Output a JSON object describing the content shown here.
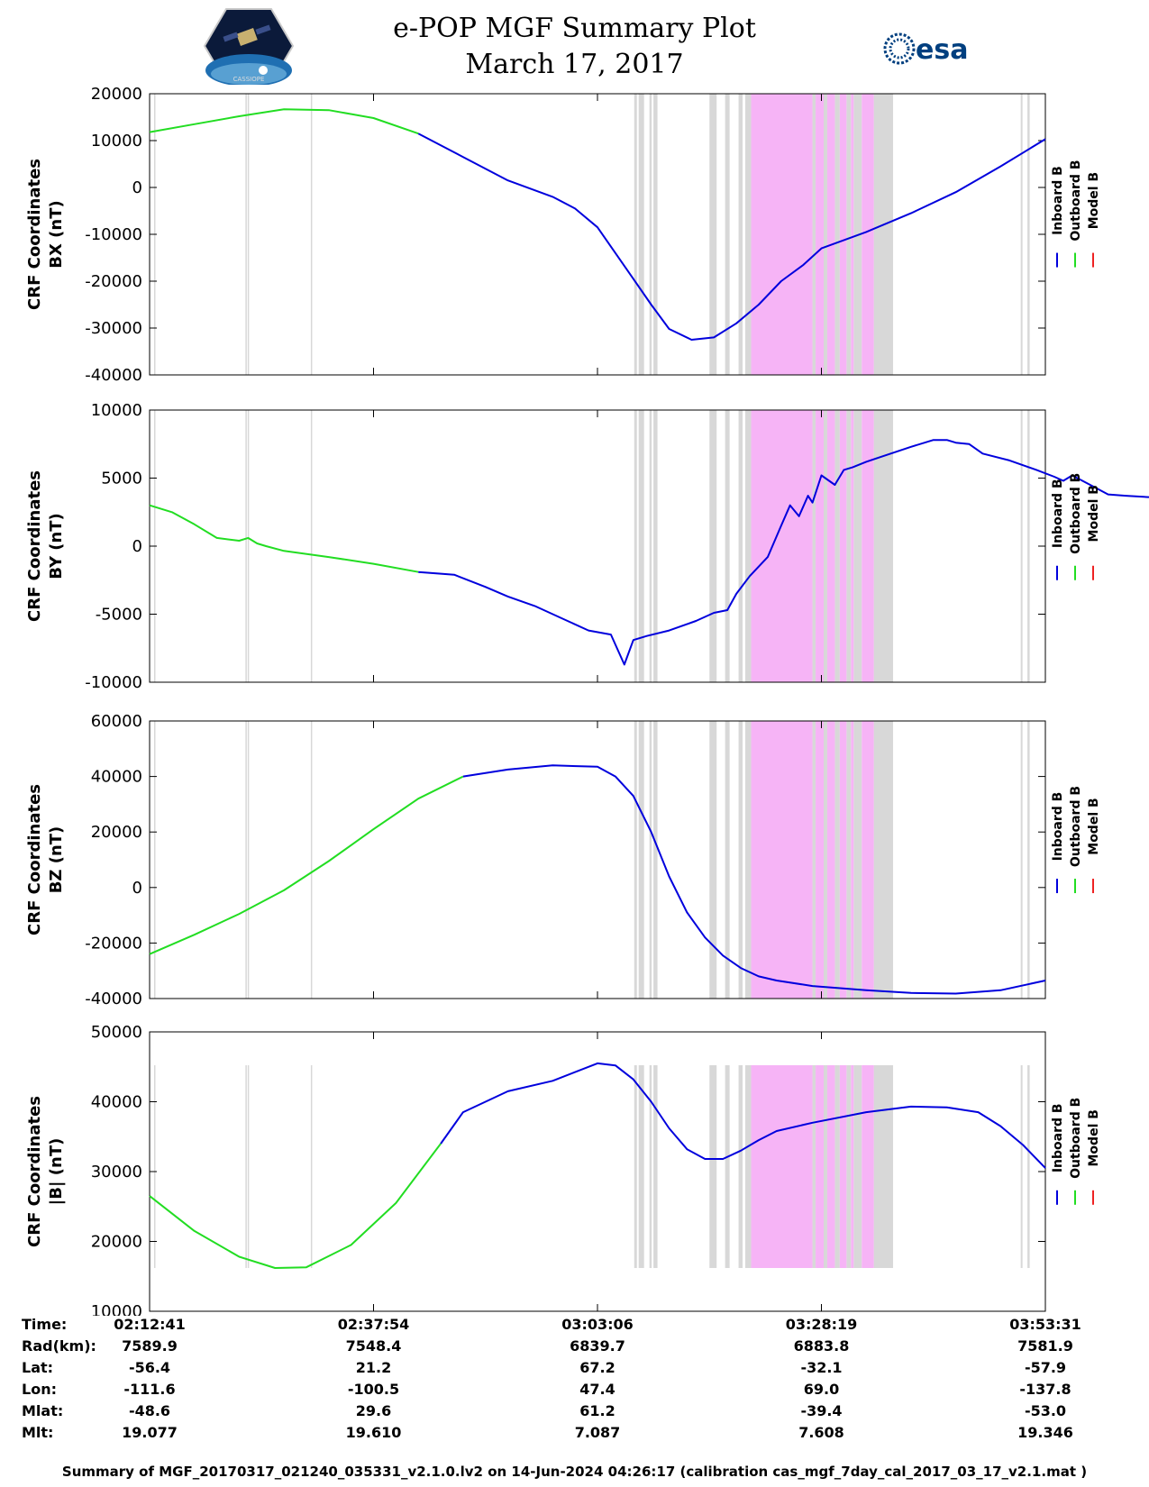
{
  "header": {
    "title": "e-POP MGF Summary Plot",
    "date": "March 17, 2017",
    "left_logo": "cassiope-hexagon-logo",
    "left_logo_text": "CASSIOPE",
    "right_logo": "esa-logo",
    "right_logo_text": "esa"
  },
  "colors": {
    "inboard": "#0000dd",
    "outboard": "#22dd22",
    "model": "#ee2222",
    "gray_band": "#d8d8d8",
    "pink_band": "#f6b4f6"
  },
  "legend": {
    "labels": [
      "Inboard B",
      "Outboard B",
      "Model B"
    ]
  },
  "chart_data": [
    {
      "type": "line",
      "ylabel": "CRF Coordinates\nBX (nT)",
      "ylabel_lines": [
        "CRF Coordinates",
        "BX (nT)"
      ],
      "ylim": [
        -40000,
        20000
      ],
      "yticks": [
        -40000,
        -30000,
        -20000,
        -10000,
        0,
        10000,
        20000
      ],
      "ytick_labels": [
        "-40000",
        "-30000",
        "-20000",
        "-10000",
        "0",
        "10000",
        "20000"
      ],
      "xlim": [
        "02:12:41",
        "03:53:31"
      ],
      "series": [
        {
          "name": "Outboard B",
          "color": "#22dd22",
          "x": [
            0,
            10,
            20,
            30,
            40,
            50,
            60
          ],
          "y": [
            11800,
            13500,
            15200,
            16700,
            16500,
            14800,
            11500
          ]
        },
        {
          "name": "Inboard B",
          "color": "#0000dd",
          "x": [
            60,
            70,
            80,
            90,
            95,
            100,
            104,
            108,
            112,
            116,
            121,
            126,
            131,
            136,
            141,
            146,
            150,
            160,
            170,
            180,
            190,
            200
          ],
          "y": [
            11500,
            6500,
            1500,
            -2000,
            -4500,
            -8500,
            -14000,
            -19500,
            -25000,
            -30200,
            -32500,
            -32000,
            -29000,
            -25000,
            -20000,
            -16500,
            -13000,
            -9500,
            -5500,
            -1000,
            4500,
            10300
          ]
        },
        {
          "name": "Model B",
          "color": "#ee2222",
          "x": [],
          "y": []
        }
      ]
    },
    {
      "type": "line",
      "ylabel": "CRF Coordinates\nBY (nT)",
      "ylabel_lines": [
        "CRF Coordinates",
        "BY (nT)"
      ],
      "ylim": [
        -10000,
        10000
      ],
      "yticks": [
        -10000,
        -5000,
        0,
        5000,
        10000
      ],
      "ytick_labels": [
        "-10000",
        "-5000",
        "0",
        "5000",
        "10000"
      ],
      "xlim": [
        "02:12:41",
        "03:53:31"
      ],
      "series": [
        {
          "name": "Outboard B",
          "color": "#22dd22",
          "x": [
            0,
            5,
            10,
            15,
            20,
            22,
            24,
            26,
            30,
            40,
            50,
            60
          ],
          "y": [
            3000,
            2500,
            1600,
            600,
            400,
            600,
            200,
            0,
            -350,
            -800,
            -1300,
            -1900
          ]
        },
        {
          "name": "Inboard B",
          "color": "#0000dd",
          "x": [
            60,
            68,
            75,
            80,
            86,
            92,
            98,
            103,
            106,
            108,
            111,
            116,
            122,
            126,
            129,
            131,
            134,
            138,
            141,
            143,
            145,
            147,
            148,
            150,
            153,
            155,
            157,
            160,
            170,
            175,
            178,
            180,
            183,
            186,
            192,
            198,
            202,
            204,
            206,
            210,
            214,
            218,
            223,
            231,
            232,
            234,
            238
          ],
          "y": [
            -1900,
            -2100,
            -3000,
            -3700,
            -4400,
            -5300,
            -6200,
            -6500,
            -8700,
            -6900,
            -6600,
            -6200,
            -5500,
            -4900,
            -4700,
            -3500,
            -2200,
            -800,
            1500,
            3000,
            2200,
            3700,
            3200,
            5200,
            4500,
            5600,
            5800,
            6200,
            7300,
            7800,
            7800,
            7600,
            7500,
            6800,
            6300,
            5600,
            5100,
            4800,
            5200,
            4500,
            3800,
            3700,
            3600,
            3800,
            4000,
            4100,
            3800
          ]
        },
        {
          "name": "Model B",
          "color": "#ee2222",
          "x": [],
          "y": []
        }
      ]
    },
    {
      "type": "line",
      "ylabel": "CRF Coordinates\nBZ (nT)",
      "ylabel_lines": [
        "CRF Coordinates",
        "BZ (nT)"
      ],
      "ylim": [
        -40000,
        60000
      ],
      "yticks": [
        -40000,
        -20000,
        0,
        20000,
        40000,
        60000
      ],
      "ytick_labels": [
        "-40000",
        "-20000",
        "0",
        "20000",
        "40000",
        "60000"
      ],
      "xlim": [
        "02:12:41",
        "03:53:31"
      ],
      "series": [
        {
          "name": "Outboard B",
          "color": "#22dd22",
          "x": [
            0,
            10,
            20,
            30,
            40,
            50,
            60,
            70
          ],
          "y": [
            -24000,
            -17000,
            -9500,
            -1000,
            9500,
            21000,
            32000,
            40000
          ]
        },
        {
          "name": "Inboard B",
          "color": "#0000dd",
          "x": [
            70,
            80,
            90,
            100,
            104,
            108,
            112,
            116,
            120,
            124,
            128,
            132,
            136,
            140,
            148,
            160,
            170,
            180,
            190,
            200
          ],
          "y": [
            40000,
            42500,
            44000,
            43500,
            40000,
            33000,
            20000,
            4000,
            -9000,
            -18000,
            -24500,
            -29000,
            -32000,
            -33500,
            -35500,
            -37000,
            -38000,
            -38200,
            -37000,
            -33500
          ]
        },
        {
          "name": "Model B",
          "color": "#ee2222",
          "x": [],
          "y": []
        }
      ]
    },
    {
      "type": "line",
      "ylabel": "CRF Coordinates\n|B| (nT)",
      "ylabel_lines": [
        "CRF Coordinates",
        "|B| (nT)"
      ],
      "ylim": [
        10000,
        50000
      ],
      "yticks": [
        10000,
        20000,
        30000,
        40000,
        50000
      ],
      "ytick_labels": [
        "10000",
        "20000",
        "30000",
        "40000",
        "50000"
      ],
      "xlim": [
        "02:12:41",
        "03:53:31"
      ],
      "series": [
        {
          "name": "Outboard B",
          "color": "#22dd22",
          "x": [
            0,
            10,
            20,
            28,
            35,
            45,
            55,
            65
          ],
          "y": [
            26500,
            21500,
            17800,
            16200,
            16300,
            19500,
            25500,
            34000
          ]
        },
        {
          "name": "Inboard B",
          "color": "#0000dd",
          "x": [
            65,
            70,
            80,
            90,
            100,
            104,
            108,
            112,
            116,
            120,
            124,
            128,
            132,
            136,
            140,
            148,
            160,
            170,
            178,
            185,
            190,
            195,
            200
          ],
          "y": [
            34000,
            38500,
            41500,
            43000,
            45500,
            45200,
            43200,
            40000,
            36200,
            33200,
            31800,
            31800,
            33000,
            34500,
            35800,
            37000,
            38500,
            39300,
            39200,
            38500,
            36500,
            33800,
            30500
          ]
        },
        {
          "name": "Model B",
          "color": "#ee2222",
          "x": [],
          "y": []
        }
      ]
    }
  ],
  "bands": {
    "gray": [
      [
        1,
        1.3
      ],
      [
        21.4,
        21.7
      ],
      [
        21.9,
        22.2
      ],
      [
        36,
        36.3
      ],
      [
        108.2,
        108.8
      ],
      [
        109.2,
        110.4
      ],
      [
        111.6,
        112.1
      ],
      [
        112.5,
        113.4
      ],
      [
        125,
        126.6
      ],
      [
        128.5,
        129.5
      ],
      [
        131.5,
        132.4
      ],
      [
        133,
        134.3
      ],
      [
        148,
        148.7
      ],
      [
        150.5,
        151.3
      ],
      [
        153,
        154.1
      ],
      [
        155.6,
        156.6
      ],
      [
        157.2,
        159
      ],
      [
        161.7,
        166
      ],
      [
        162.8,
        164.7
      ],
      [
        194.5,
        194.9
      ],
      [
        196,
        196.5
      ]
    ],
    "pink": [
      [
        134.3,
        148
      ],
      [
        148.7,
        150.5
      ],
      [
        151.3,
        153
      ],
      [
        154.1,
        155.6
      ],
      [
        156.6,
        157.2
      ],
      [
        159,
        161.7
      ]
    ]
  },
  "info_table": {
    "row_labels": [
      "Time:",
      "Rad(km):",
      "Lat:",
      "Lon:",
      "Mlat:",
      "Mlt:"
    ],
    "columns": [
      [
        "02:12:41",
        "7589.9",
        "-56.4",
        "-111.6",
        "-48.6",
        "19.077"
      ],
      [
        "02:37:54",
        "7548.4",
        "21.2",
        "-100.5",
        "29.6",
        "19.610"
      ],
      [
        "03:03:06",
        "6839.7",
        "67.2",
        "47.4",
        "61.2",
        "7.087"
      ],
      [
        "03:28:19",
        "6883.8",
        "-32.1",
        "69.0",
        "-39.4",
        "7.608"
      ],
      [
        "03:53:31",
        "7581.9",
        "-57.9",
        "-137.8",
        "-53.0",
        "19.346"
      ]
    ]
  },
  "footer": "Summary of MGF_20170317_021240_035331_v2.1.0.lv2 on 14-Jun-2024 04:26:17 (calibration cas_mgf_7day_cal_2017_03_17_v2.1.mat )"
}
